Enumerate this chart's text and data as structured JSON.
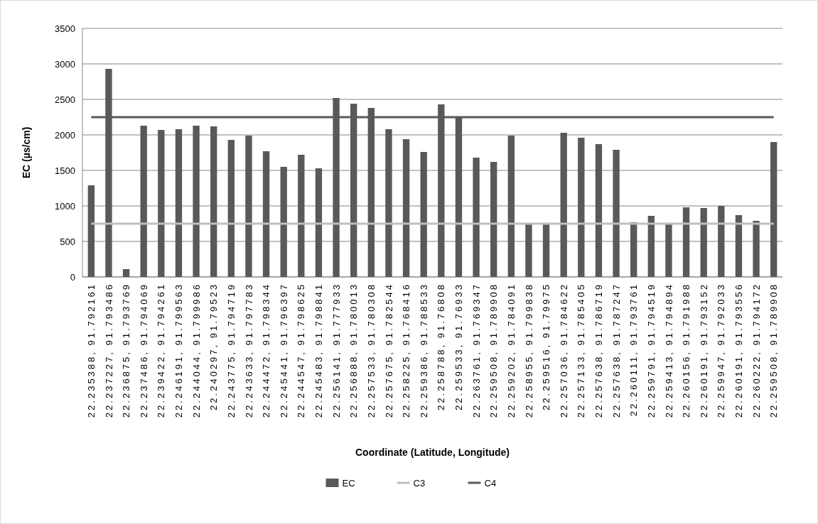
{
  "chart_data": {
    "type": "bar",
    "xlabel": "Coordinate (Latitude, Longitude)",
    "ylabel": "EC (µs/cm)",
    "categories": [
      "22.235388, 91.792161",
      "22.237227, 91.793486",
      "22.236875, 91.793769",
      "22.237486, 91.794069",
      "22.239422, 91.794261",
      "22.246191, 91.799563",
      "22.244044, 91.799986",
      "22.240297, 91.79523",
      "22.243775, 91.794719",
      "22.243633, 91.797783",
      "22.244472, 91.798344",
      "22.245441, 91.796397",
      "22.244547, 91.798625",
      "22.245483, 91.798841",
      "22.256141, 91.777933",
      "22.256888, 91.780013",
      "22.257533, 91.780308",
      "22.257675, 91.782544",
      "22.258225, 91.768416",
      "22.259386, 91.788533",
      "22.258788, 91.76808",
      "22.259533, 91.76933",
      "22.263761, 91.769347",
      "22.259508, 91.789908",
      "22.259202, 91.784091",
      "22.258955, 91.799838",
      "22.259516, 91.79975",
      "22.257036, 91.784622",
      "22.257133, 91.785405",
      "22.257638, 91.786719",
      "22.257638, 91.787247",
      "22.260111, 91.793761",
      "22.259791, 91.794519",
      "22.259413, 91.794894",
      "22.260156, 91.791988",
      "22.260191, 91.793152",
      "22.259947, 91.792033",
      "22.260191, 91.793556",
      "22.260222, 91.794172",
      "22.259508, 91.789908"
    ],
    "series": [
      {
        "name": "EC",
        "color": "#595959",
        "values": [
          1290,
          2930,
          110,
          2130,
          2070,
          2080,
          2130,
          2120,
          1930,
          1990,
          1770,
          1550,
          1720,
          1530,
          2520,
          2440,
          2380,
          2080,
          1940,
          1760,
          2430,
          2250,
          1680,
          1620,
          1990,
          740,
          740,
          2030,
          1960,
          1870,
          1790,
          770,
          860,
          740,
          980,
          970,
          1000,
          870,
          790,
          1900
        ]
      },
      {
        "name": "C3",
        "type": "line",
        "color": "#bfbfbf",
        "values": [
          750,
          750,
          750,
          750,
          750,
          750,
          750,
          750,
          750,
          750,
          750,
          750,
          750,
          750,
          750,
          750,
          750,
          750,
          750,
          750,
          750,
          750,
          750,
          750,
          750,
          750,
          750,
          750,
          750,
          750,
          750,
          750,
          750,
          750,
          750,
          750,
          750,
          750,
          750,
          750
        ]
      },
      {
        "name": "C4",
        "type": "line",
        "color": "#595959",
        "values": [
          2250,
          2250,
          2250,
          2250,
          2250,
          2250,
          2250,
          2250,
          2250,
          2250,
          2250,
          2250,
          2250,
          2250,
          2250,
          2250,
          2250,
          2250,
          2250,
          2250,
          2250,
          2250,
          2250,
          2250,
          2250,
          2250,
          2250,
          2250,
          2250,
          2250,
          2250,
          2250,
          2250,
          2250,
          2250,
          2250,
          2250,
          2250,
          2250,
          2250
        ]
      }
    ],
    "ylim": [
      0,
      3500
    ],
    "yticks": [
      0,
      500,
      1000,
      1500,
      2000,
      2500,
      3000,
      3500
    ],
    "grid": "y",
    "legend": "bottom",
    "line_style": "solid",
    "marker": "none"
  }
}
